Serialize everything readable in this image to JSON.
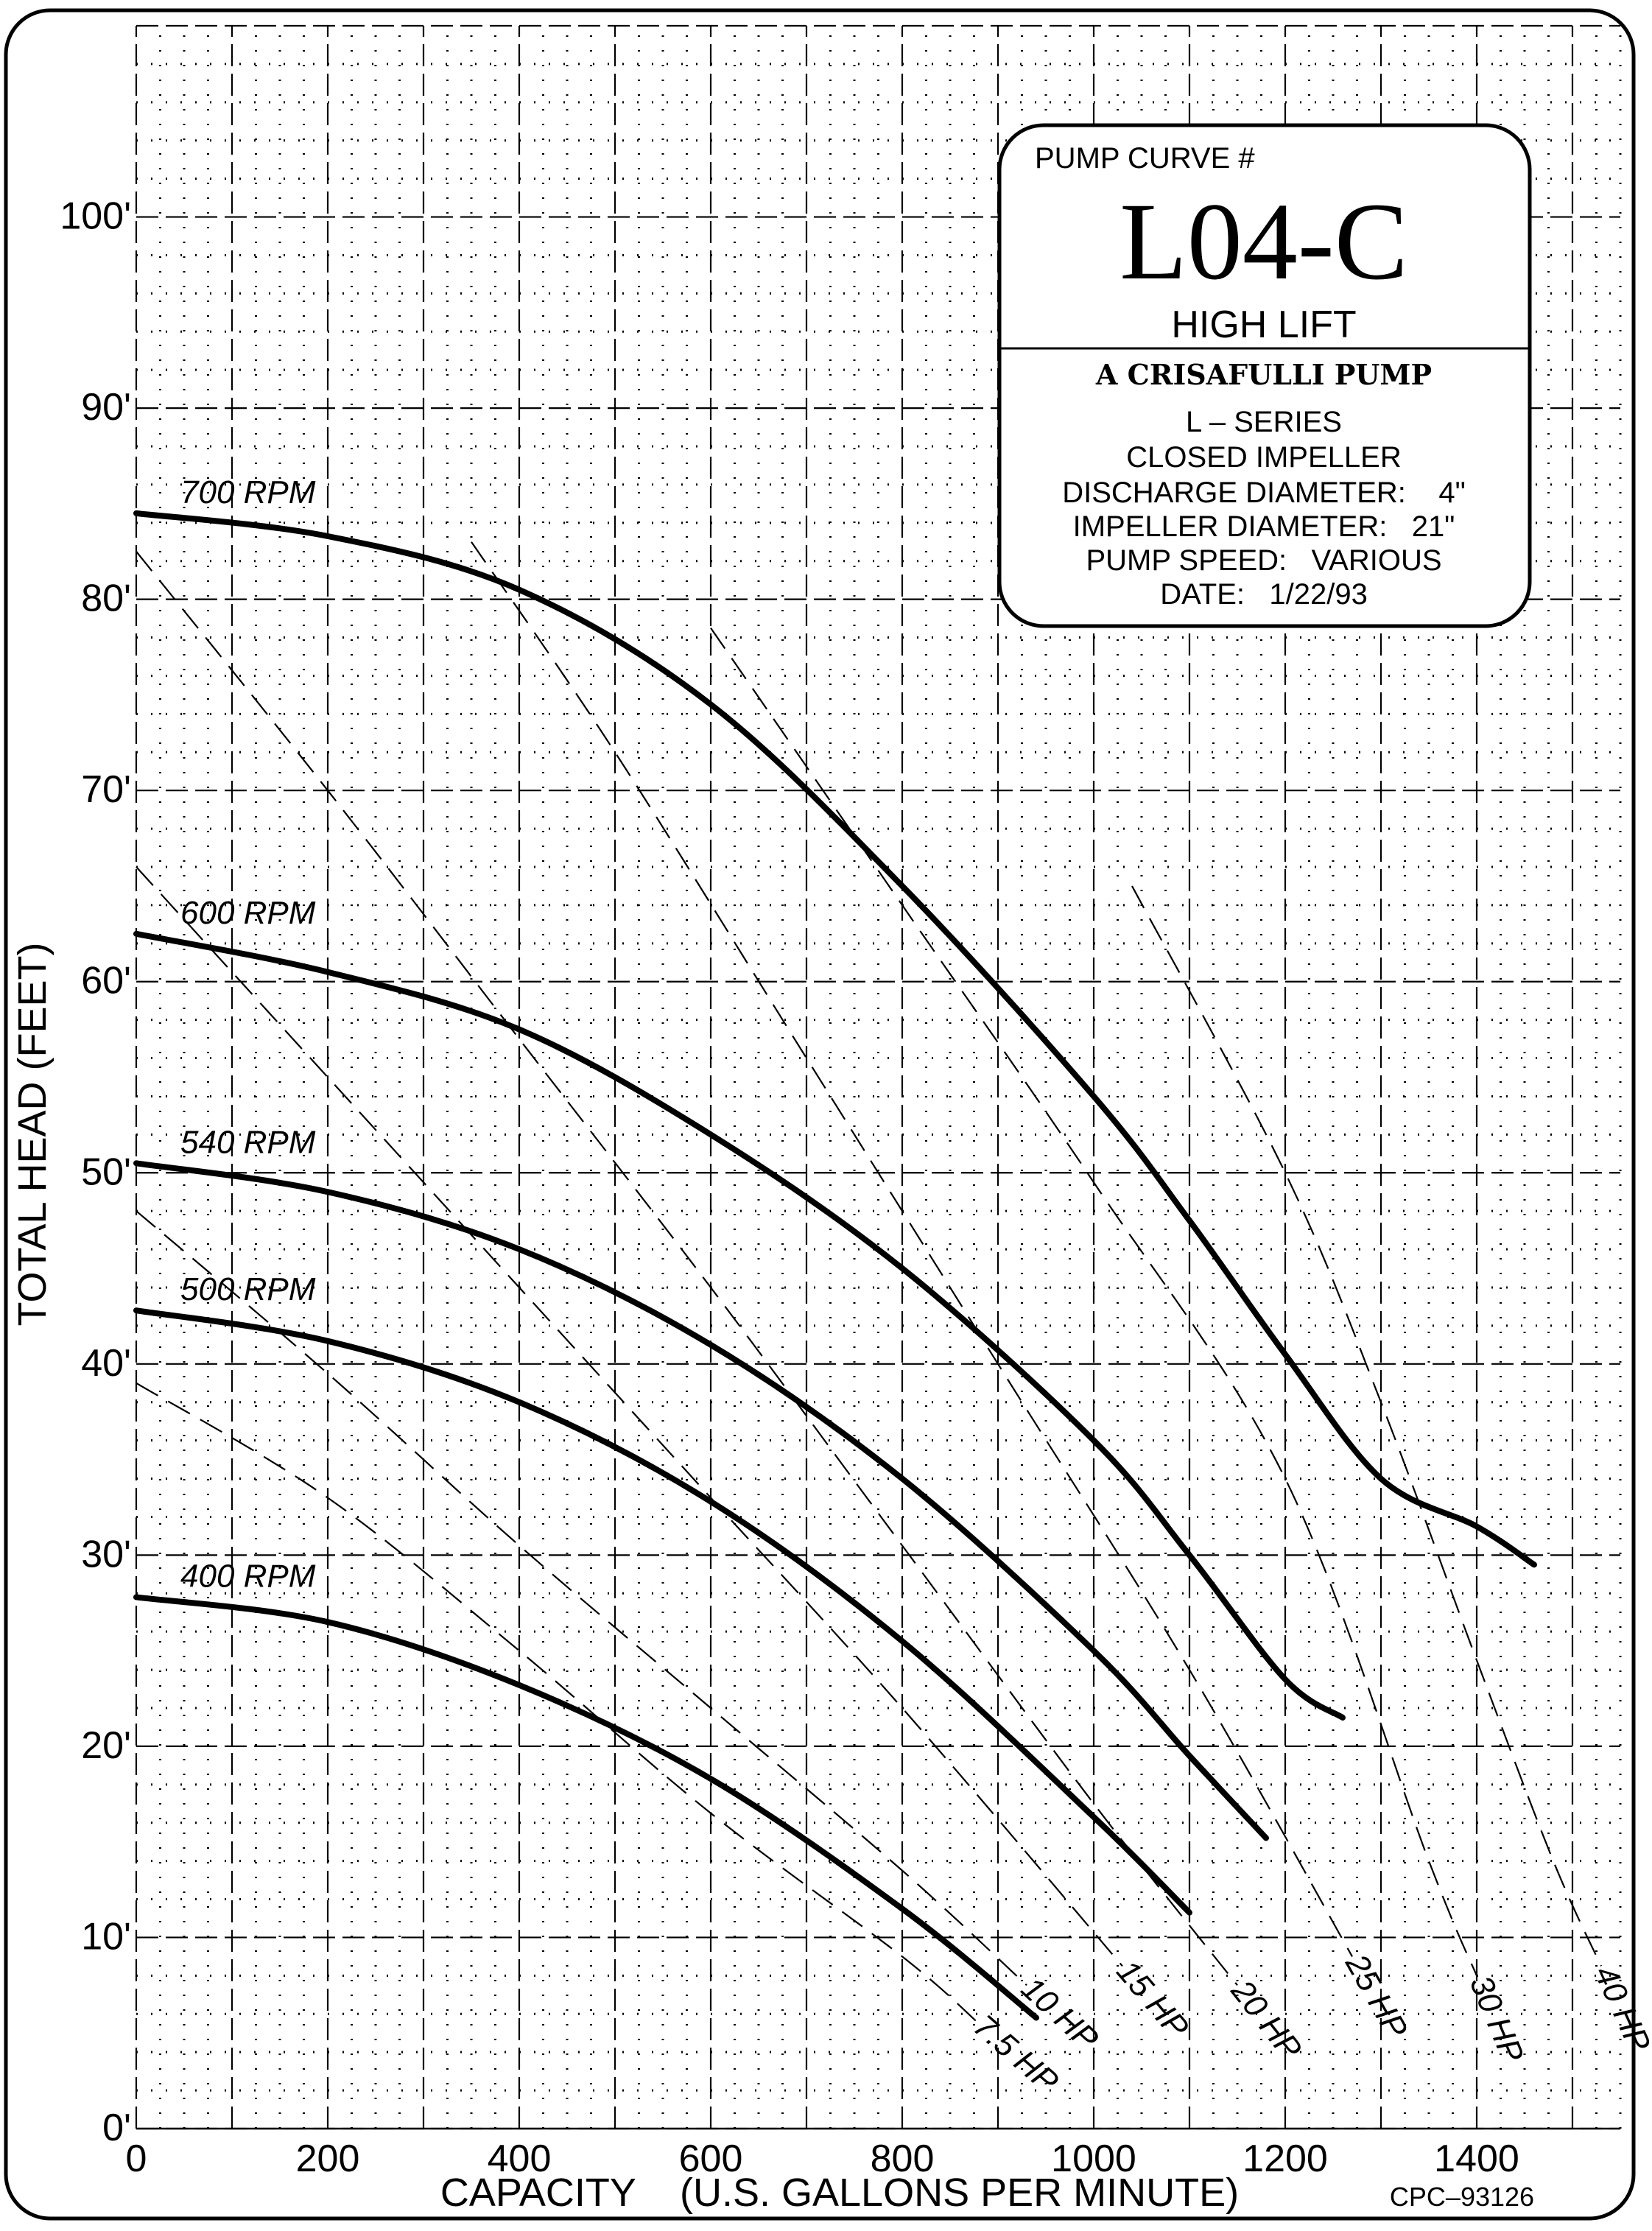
{
  "chart_data": {
    "type": "line",
    "xlabel": "CAPACITY    (U.S. GALLONS PER MINUTE)",
    "ylabel": "TOTAL HEAD     (FEET)",
    "xlim": [
      0,
      1550
    ],
    "ylim": [
      0,
      110
    ],
    "x_ticks": [
      {
        "value": 0,
        "label": "0"
      },
      {
        "value": 200,
        "label": "200"
      },
      {
        "value": 400,
        "label": "400"
      },
      {
        "value": 600,
        "label": "600"
      },
      {
        "value": 800,
        "label": "800"
      },
      {
        "value": 1000,
        "label": "1000"
      },
      {
        "value": 1200,
        "label": "1200"
      },
      {
        "value": 1400,
        "label": "1400"
      }
    ],
    "y_ticks": [
      {
        "value": 0,
        "label": "0'"
      },
      {
        "value": 10,
        "label": "10'"
      },
      {
        "value": 20,
        "label": "20'"
      },
      {
        "value": 30,
        "label": "30'"
      },
      {
        "value": 40,
        "label": "40'"
      },
      {
        "value": 50,
        "label": "50'"
      },
      {
        "value": 60,
        "label": "60'"
      },
      {
        "value": 70,
        "label": "70'"
      },
      {
        "value": 80,
        "label": "80'"
      },
      {
        "value": 90,
        "label": "90'"
      },
      {
        "value": 100,
        "label": "100'"
      }
    ],
    "grid": true,
    "series": [
      {
        "name": "700 RPM",
        "points": [
          [
            0,
            84.5
          ],
          [
            200,
            83.3
          ],
          [
            400,
            80.5
          ],
          [
            600,
            74.5
          ],
          [
            800,
            65
          ],
          [
            1000,
            54
          ],
          [
            1100,
            47.5
          ],
          [
            1200,
            40.5
          ],
          [
            1300,
            34
          ],
          [
            1400,
            31.5
          ],
          [
            1460,
            29.5
          ]
        ]
      },
      {
        "name": "600 RPM",
        "points": [
          [
            0,
            62.5
          ],
          [
            200,
            60.5
          ],
          [
            400,
            57.5
          ],
          [
            600,
            52
          ],
          [
            800,
            45
          ],
          [
            1000,
            36
          ],
          [
            1100,
            30
          ],
          [
            1200,
            23.5
          ],
          [
            1260,
            21.5
          ]
        ]
      },
      {
        "name": "540 RPM",
        "points": [
          [
            0,
            50.5
          ],
          [
            200,
            49
          ],
          [
            400,
            46
          ],
          [
            600,
            41
          ],
          [
            800,
            34
          ],
          [
            1000,
            25
          ],
          [
            1100,
            19.5
          ],
          [
            1180,
            15.2
          ]
        ]
      },
      {
        "name": "500 RPM",
        "points": [
          [
            0,
            42.8
          ],
          [
            200,
            41.2
          ],
          [
            400,
            38
          ],
          [
            600,
            32.8
          ],
          [
            800,
            25.5
          ],
          [
            1000,
            16.3
          ],
          [
            1100,
            11.3
          ]
        ]
      },
      {
        "name": "400 RPM",
        "points": [
          [
            0,
            27.8
          ],
          [
            200,
            26.5
          ],
          [
            400,
            23.2
          ],
          [
            600,
            18.3
          ],
          [
            800,
            11.5
          ],
          [
            940,
            5.8
          ]
        ]
      }
    ],
    "power_lines": [
      {
        "name": "7.5 HP",
        "points": [
          [
            0,
            39
          ],
          [
            200,
            33
          ],
          [
            400,
            25
          ],
          [
            600,
            16.5
          ],
          [
            800,
            9
          ],
          [
            880,
            5.5
          ]
        ]
      },
      {
        "name": "10 HP",
        "points": [
          [
            0,
            48
          ],
          [
            200,
            39.5
          ],
          [
            400,
            30.5
          ],
          [
            600,
            22
          ],
          [
            800,
            13.5
          ],
          [
            930,
            7.5
          ]
        ]
      },
      {
        "name": "15 HP",
        "points": [
          [
            0,
            66
          ],
          [
            200,
            55
          ],
          [
            400,
            44
          ],
          [
            600,
            33
          ],
          [
            800,
            22
          ],
          [
            1030,
            8.5
          ]
        ]
      },
      {
        "name": "20 HP",
        "points": [
          [
            0,
            82.5
          ],
          [
            200,
            70
          ],
          [
            400,
            57
          ],
          [
            600,
            44
          ],
          [
            800,
            30.5
          ],
          [
            1000,
            17
          ],
          [
            1150,
            7.5
          ]
        ]
      },
      {
        "name": "25 HP",
        "points": [
          [
            350,
            83
          ],
          [
            500,
            72
          ],
          [
            700,
            56
          ],
          [
            900,
            40
          ],
          [
            1100,
            24
          ],
          [
            1270,
            9
          ]
        ]
      },
      {
        "name": "30 HP",
        "points": [
          [
            600,
            78.5
          ],
          [
            800,
            64
          ],
          [
            1000,
            49.5
          ],
          [
            1200,
            34
          ],
          [
            1350,
            14
          ],
          [
            1400,
            8
          ]
        ]
      },
      {
        "name": "40 HP",
        "points": [
          [
            1040,
            65
          ],
          [
            1200,
            50
          ],
          [
            1300,
            38
          ],
          [
            1400,
            24.5
          ],
          [
            1480,
            14
          ],
          [
            1530,
            8.5
          ]
        ]
      }
    ]
  },
  "info_box": {
    "pump_curve_label": "PUMP CURVE #",
    "curve_number": "L04-C",
    "subtitle": "HIGH LIFT",
    "brand": "A CRISAFULLI PUMP",
    "lines": [
      "L – SERIES",
      "CLOSED IMPELLER",
      "DISCHARGE DIAMETER:    4\"",
      "IMPELLER DIAMETER:   21\"",
      "PUMP SPEED:   VARIOUS",
      "DATE:   1/22/93"
    ]
  },
  "reference_code": "CPC–93126"
}
